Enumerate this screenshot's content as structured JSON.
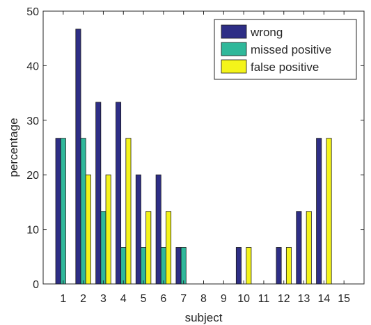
{
  "chart_data": {
    "type": "bar",
    "xlabel": "subject",
    "ylabel": "percentage",
    "categories": [
      "1",
      "2",
      "3",
      "4",
      "5",
      "6",
      "7",
      "8",
      "9",
      "10",
      "11",
      "12",
      "13",
      "14",
      "15"
    ],
    "ylim": [
      0,
      50
    ],
    "yticks": [
      "0",
      "10",
      "20",
      "30",
      "40",
      "50"
    ],
    "grid": false,
    "legend_position": "top-right",
    "series": [
      {
        "name": "wrong",
        "color": "#2e2e86",
        "values": [
          26.7,
          46.7,
          33.3,
          33.3,
          20,
          20,
          6.7,
          0,
          0,
          6.7,
          0,
          6.7,
          13.3,
          26.7,
          0
        ]
      },
      {
        "name": "missed positive",
        "color": "#2fb89a",
        "values": [
          26.7,
          26.7,
          13.3,
          6.7,
          6.7,
          6.7,
          6.7,
          0,
          0,
          0,
          0,
          0,
          0,
          0,
          0
        ]
      },
      {
        "name": "false positive",
        "color": "#f4f41a",
        "values": [
          0,
          20,
          20,
          26.7,
          13.3,
          13.3,
          0,
          0,
          0,
          6.7,
          0,
          6.7,
          13.3,
          26.7,
          0
        ]
      }
    ]
  }
}
